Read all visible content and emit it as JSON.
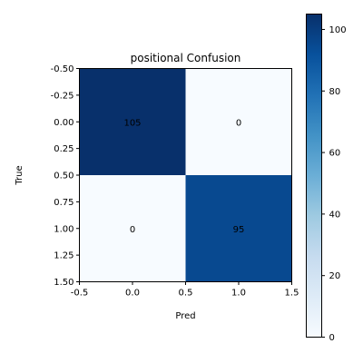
{
  "chart_data": {
    "type": "heatmap",
    "title": "positional Confusion",
    "xlabel": "Pred",
    "ylabel": "True",
    "matrix": [
      [
        105,
        0
      ],
      [
        0,
        95
      ]
    ],
    "cell_labels": [
      [
        "105",
        "0"
      ],
      [
        "0",
        "95"
      ]
    ],
    "xlim": [
      -0.5,
      1.5
    ],
    "ylim": [
      1.5,
      -0.5
    ],
    "xticks": [
      "-0.5",
      "0.0",
      "0.5",
      "1.0",
      "1.5"
    ],
    "yticks": [
      "-0.50",
      "-0.25",
      "0.00",
      "0.25",
      "0.50",
      "0.75",
      "1.00",
      "1.25",
      "1.50"
    ],
    "colormap": "Blues",
    "colorbar": {
      "range": [
        0,
        105
      ],
      "ticks": [
        "0",
        "20",
        "40",
        "60",
        "80",
        "100"
      ]
    }
  }
}
